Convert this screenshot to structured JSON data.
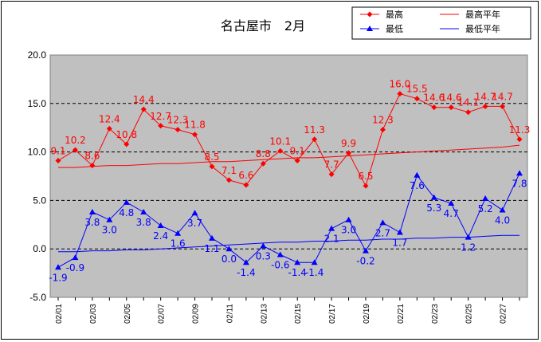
{
  "chart_data": {
    "type": "line",
    "title": "名古屋市　2月",
    "ylim": [
      -5.0,
      20.0
    ],
    "yticks": [
      "20.0",
      "15.0",
      "10.0",
      "5.0",
      "0.0",
      "-5.0"
    ],
    "grid": "dashed horizontal",
    "legend_position": "top-right",
    "x": [
      "02/01",
      "02/02",
      "02/03",
      "02/04",
      "02/05",
      "02/06",
      "02/07",
      "02/08",
      "02/09",
      "02/10",
      "02/11",
      "02/12",
      "02/13",
      "02/14",
      "02/15",
      "02/16",
      "02/17",
      "02/18",
      "02/19",
      "02/20",
      "02/21",
      "02/22",
      "02/23",
      "02/24",
      "02/25",
      "02/26",
      "02/27",
      "02/28"
    ],
    "xticklabels": [
      "02/01",
      "02/03",
      "02/05",
      "02/07",
      "02/09",
      "02/11",
      "02/13",
      "02/15",
      "02/17",
      "02/19",
      "02/21",
      "02/23",
      "02/25",
      "02/27"
    ],
    "series": [
      {
        "name": "最高",
        "color": "#ff0000",
        "marker": "diamond",
        "values": [
          9.1,
          10.2,
          8.6,
          12.4,
          10.8,
          14.4,
          12.7,
          12.3,
          11.8,
          8.5,
          7.1,
          6.6,
          8.8,
          10.1,
          9.1,
          11.3,
          7.7,
          9.9,
          6.5,
          12.3,
          16.0,
          15.5,
          14.6,
          14.6,
          14.1,
          14.7,
          14.7,
          11.3
        ],
        "labels": [
          "9.1",
          "10.2",
          "8.6",
          "12.4",
          "10.8",
          "14.4",
          "12.7",
          "12.3",
          "11.8",
          "8.5",
          "7.1",
          "6.6",
          "8.8",
          "10.1",
          "9.1",
          "11.3",
          "7.7",
          "9.9",
          "6.5",
          "12.3",
          "16.0",
          "15.5",
          "14.6",
          "14.6",
          "14.1",
          "14.7",
          "14.7",
          "11.3"
        ]
      },
      {
        "name": "最高平年",
        "color": "#ff0000",
        "marker": "none",
        "values": [
          8.4,
          8.4,
          8.5,
          8.6,
          8.6,
          8.7,
          8.8,
          8.8,
          8.9,
          9.0,
          9.0,
          9.1,
          9.2,
          9.3,
          9.4,
          9.4,
          9.5,
          9.6,
          9.7,
          9.8,
          9.9,
          10.0,
          10.1,
          10.2,
          10.3,
          10.4,
          10.5,
          10.7
        ]
      },
      {
        "name": "最低",
        "color": "#0000ff",
        "marker": "triangle",
        "values": [
          -1.9,
          -0.9,
          3.8,
          3.0,
          4.8,
          3.8,
          2.4,
          1.6,
          3.7,
          1.1,
          0.0,
          -1.4,
          0.3,
          -0.6,
          -1.4,
          -1.4,
          2.1,
          3.0,
          -0.2,
          2.7,
          1.7,
          7.6,
          5.3,
          4.7,
          1.2,
          5.2,
          4.0,
          7.8
        ],
        "labels": [
          "-1.9",
          "-0.9",
          "3.8",
          "3.0",
          "4.8",
          "3.8",
          "2.4",
          "1.6",
          "3.7",
          "1.1",
          "0.0",
          "-1.4",
          "0.3",
          "-0.6",
          "-1.4",
          "-1.4",
          "2.1",
          "3.0",
          "-0.2",
          "2.7",
          "1.7",
          "7.6",
          "5.3",
          "4.7",
          "1.2",
          "5.2",
          "4.0",
          "7.8"
        ]
      },
      {
        "name": "最低平年",
        "color": "#0000ff",
        "marker": "none",
        "values": [
          -0.3,
          -0.3,
          -0.2,
          -0.2,
          -0.1,
          -0.1,
          0.0,
          0.1,
          0.2,
          0.3,
          0.4,
          0.5,
          0.6,
          0.7,
          0.7,
          0.8,
          0.8,
          0.9,
          0.9,
          1.0,
          1.0,
          1.1,
          1.1,
          1.2,
          1.2,
          1.3,
          1.4,
          1.4
        ]
      }
    ]
  }
}
